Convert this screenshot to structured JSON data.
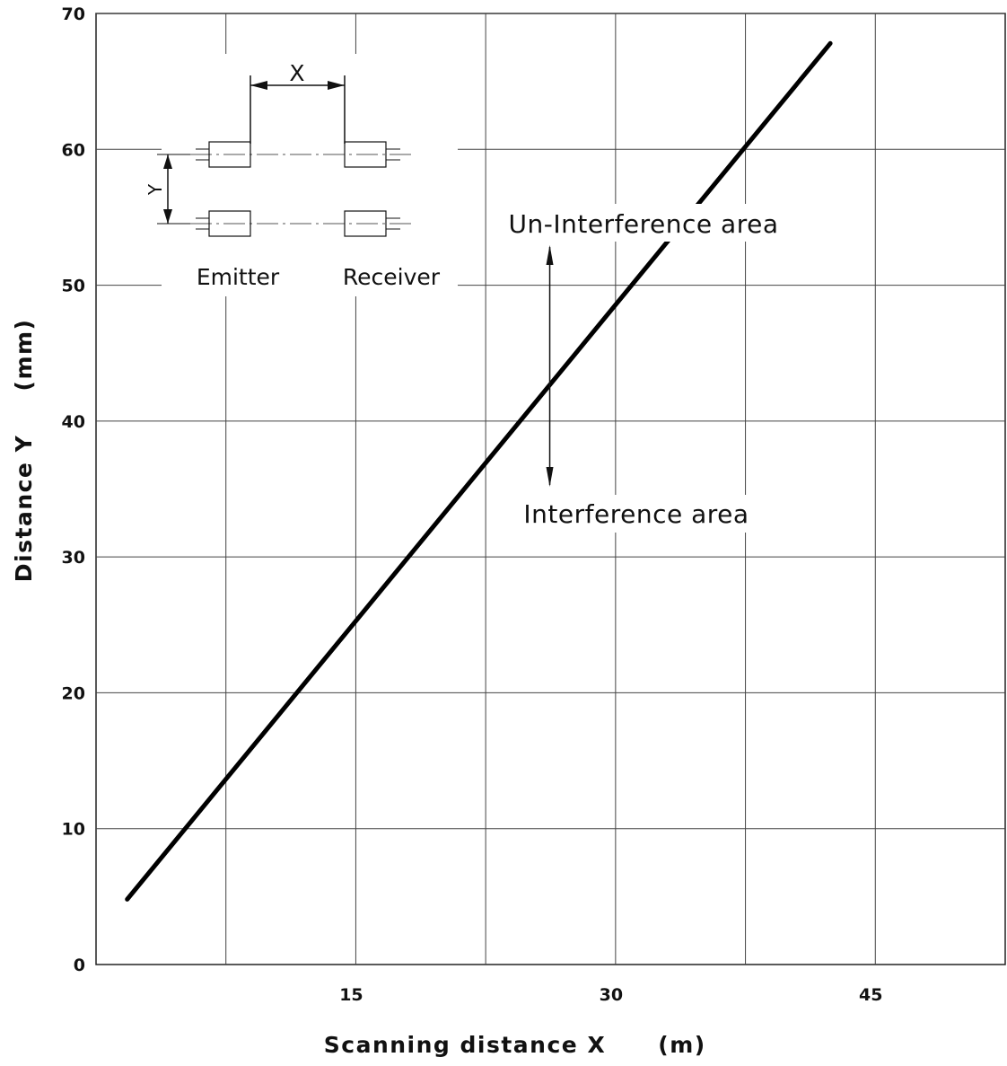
{
  "chart_data": {
    "type": "line",
    "title": "",
    "xlabel": "Scanning distance X",
    "xunit": "(m)",
    "ylabel": "Distance Y",
    "yunit": "(mm)",
    "xlim": [
      0,
      52.5
    ],
    "ylim": [
      0,
      70
    ],
    "xticks": [
      15,
      30,
      45
    ],
    "yticks": [
      0,
      10,
      20,
      30,
      40,
      50,
      60,
      70
    ],
    "x_grid": [
      7.5,
      15,
      22.5,
      30,
      37.5,
      45
    ],
    "y_grid": [
      10,
      20,
      30,
      40,
      50,
      60,
      70
    ],
    "grid": true,
    "series": [
      {
        "color": "#000000",
        "x": [
          1.8,
          42.4
        ],
        "y": [
          4.8,
          67.8
        ]
      }
    ],
    "annotations": {
      "above": "Un-Interference area",
      "below": "Interference area",
      "arrow_x": 26.2
    },
    "inset": {
      "x_label": "X",
      "y_label": "Y",
      "emitter_label": "Emitter",
      "receiver_label": "Receiver"
    }
  }
}
